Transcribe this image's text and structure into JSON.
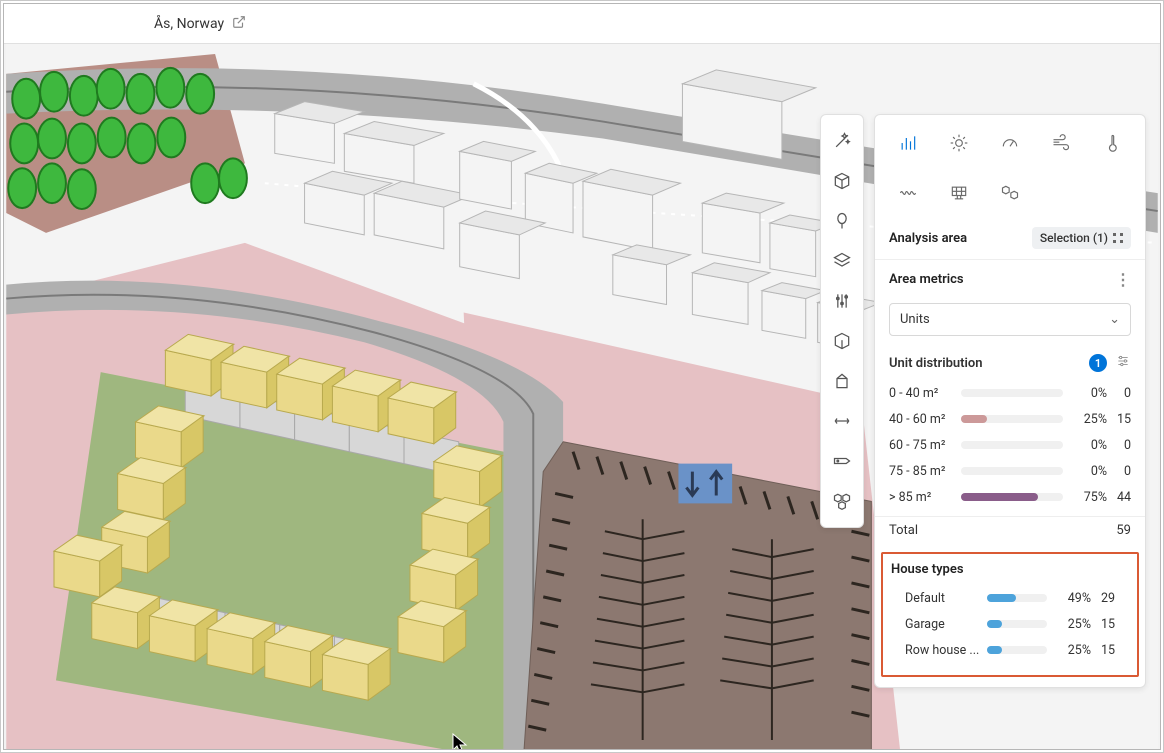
{
  "topbar": {
    "location": "Ås, Norway"
  },
  "panel": {
    "analysis_area_label": "Analysis area",
    "selection_badge": "Selection (1)",
    "area_metrics_label": "Area metrics",
    "select_value": "Units",
    "unit_dist_label": "Unit distribution",
    "unit_dist_count": "1",
    "unit_rows": [
      {
        "label": "0 - 40 m²",
        "pct": "0%",
        "pct_num": 0,
        "count": "0",
        "color": "#c99"
      },
      {
        "label": "40 - 60 m²",
        "pct": "25%",
        "pct_num": 25,
        "count": "15",
        "color": "#c99"
      },
      {
        "label": "60 - 75 m²",
        "pct": "0%",
        "pct_num": 0,
        "count": "0",
        "color": "#bb9"
      },
      {
        "label": "75 - 85 m²",
        "pct": "0%",
        "pct_num": 0,
        "count": "0",
        "color": "#9c9ebf"
      },
      {
        "label": "> 85 m²",
        "pct": "75%",
        "pct_num": 75,
        "count": "44",
        "color": "#8a5d8a"
      }
    ],
    "total_label": "Total",
    "total_value": "59",
    "house_types_label": "House types",
    "house_rows": [
      {
        "label": "Default",
        "pct": "49%",
        "pct_num": 49,
        "count": "29",
        "color": "#4da3db"
      },
      {
        "label": "Garage",
        "pct": "25%",
        "pct_num": 25,
        "count": "15",
        "color": "#4da3db"
      },
      {
        "label": "Row house ...",
        "pct": "25%",
        "pct_num": 25,
        "count": "15",
        "color": "#4da3db"
      }
    ]
  },
  "scene": {
    "bg_color": "#f5f5f5",
    "road_color": "#b0b0b0",
    "road_color2": "#7a7a7a",
    "terrain_pink": "#e6c1c4",
    "terrain_brown": "#b98e85",
    "grass": "#9fb77f",
    "tree_fill": "#3eb83e",
    "tree_stroke": "#1f7a1f",
    "bldg_white_fill": "#f4f4f4",
    "bldg_white_stroke": "#b6b6b6",
    "bldg_grey_fill": "#d7d7d7",
    "bldg_yellow_fill": "#ead98a",
    "bldg_yellow_roof": "#f0e4a6",
    "bldg_yellow_stroke": "#b8a94e",
    "bldg_light_grey": "#e2e2e2",
    "parking_fill": "#8c7870",
    "parking_edge": "#6f5f58",
    "parking_line": "#2d2620",
    "parking_blue": "#6a92c8"
  }
}
